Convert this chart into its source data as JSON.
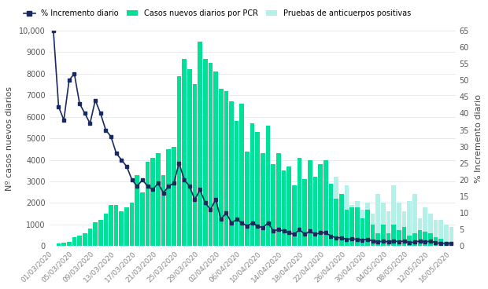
{
  "dates": [
    "01/03/2020",
    "02/03/2020",
    "03/03/2020",
    "04/03/2020",
    "05/03/2020",
    "06/03/2020",
    "07/03/2020",
    "08/03/2020",
    "09/03/2020",
    "10/03/2020",
    "11/03/2020",
    "12/03/2020",
    "13/03/2020",
    "14/03/2020",
    "15/03/2020",
    "16/03/2020",
    "17/03/2020",
    "18/03/2020",
    "19/03/2020",
    "20/03/2020",
    "21/03/2020",
    "22/03/2020",
    "23/03/2020",
    "24/03/2020",
    "25/03/2020",
    "26/03/2020",
    "27/03/2020",
    "28/03/2020",
    "29/03/2020",
    "30/03/2020",
    "31/03/2020",
    "01/04/2020",
    "02/04/2020",
    "03/04/2020",
    "04/04/2020",
    "05/04/2020",
    "06/04/2020",
    "07/04/2020",
    "08/04/2020",
    "09/04/2020",
    "10/04/2020",
    "11/04/2020",
    "12/04/2020",
    "13/04/2020",
    "14/04/2020",
    "15/04/2020",
    "16/04/2020",
    "17/04/2020",
    "18/04/2020",
    "19/04/2020",
    "20/04/2020",
    "21/04/2020",
    "22/04/2020",
    "23/04/2020",
    "24/04/2020",
    "25/04/2020",
    "26/04/2020",
    "27/04/2020",
    "28/04/2020",
    "29/04/2020",
    "30/04/2020",
    "01/05/2020",
    "02/05/2020",
    "03/05/2020",
    "04/05/2020",
    "05/05/2020",
    "06/05/2020",
    "07/05/2020",
    "08/05/2020",
    "09/05/2020",
    "10/05/2020",
    "11/05/2020",
    "12/05/2020",
    "13/05/2020",
    "14/05/2020",
    "15/05/2020",
    "16/05/2020"
  ],
  "pcr_cases": [
    0,
    100,
    150,
    200,
    400,
    500,
    600,
    800,
    1100,
    1200,
    1500,
    1900,
    1900,
    1600,
    1800,
    2000,
    3300,
    2500,
    3900,
    4100,
    4300,
    3300,
    4500,
    4600,
    7900,
    8700,
    8200,
    7500,
    9500,
    8700,
    8500,
    8100,
    7300,
    7200,
    6700,
    5800,
    6600,
    4400,
    5700,
    5300,
    4300,
    5600,
    3800,
    4300,
    3500,
    3700,
    2800,
    4100,
    3100,
    4000,
    3200,
    3800,
    4000,
    2900,
    2200,
    2400,
    1700,
    1800,
    1800,
    1300,
    1700,
    1000,
    600,
    1000,
    600,
    1000,
    750,
    900,
    500,
    600,
    750,
    650,
    600,
    400,
    350,
    200,
    180
  ],
  "antibody_cases": [
    0,
    0,
    0,
    0,
    0,
    0,
    0,
    0,
    0,
    0,
    0,
    0,
    0,
    0,
    0,
    0,
    0,
    0,
    0,
    0,
    0,
    0,
    0,
    0,
    0,
    0,
    0,
    0,
    0,
    0,
    0,
    0,
    0,
    0,
    0,
    0,
    0,
    0,
    0,
    0,
    0,
    0,
    0,
    0,
    0,
    0,
    0,
    0,
    800,
    1200,
    1400,
    2500,
    3200,
    2800,
    3200,
    2400,
    2800,
    1900,
    2100,
    1700,
    2000,
    1500,
    2400,
    2000,
    1600,
    2800,
    2000,
    1600,
    2100,
    2400,
    1300,
    1800,
    1500,
    1200,
    1200,
    1000,
    900
  ],
  "pct_increment": [
    65,
    42,
    38,
    50,
    52,
    43,
    40,
    37,
    44,
    40,
    35,
    33,
    28,
    26,
    24,
    20,
    18,
    20,
    18,
    17,
    19,
    16,
    18,
    19,
    25,
    20,
    18,
    14,
    17,
    13,
    11,
    14,
    8,
    10,
    7,
    8,
    7,
    6,
    7,
    6,
    5.5,
    7,
    4.5,
    5,
    4.5,
    4,
    3.5,
    5,
    3.5,
    4.5,
    3.5,
    4,
    4,
    3,
    2.5,
    2.5,
    2,
    2.2,
    2,
    1.8,
    2,
    1.5,
    1.2,
    1.5,
    1.2,
    1.5,
    1.3,
    1.5,
    1,
    1.2,
    1.5,
    1.2,
    1.5,
    1,
    0.8,
    0.8,
    0.7
  ],
  "xtick_labels": [
    "01/03/2020",
    "05/03/2020",
    "09/03/2020",
    "13/03/2020",
    "17/03/2020",
    "21/03/2020",
    "25/03/2020",
    "29/03/2020",
    "02/04/2020",
    "06/04/2020",
    "10/04/2020",
    "14/04/2020",
    "18/04/2020",
    "22/04/2020",
    "26/04/2020",
    "30/04/2020",
    "04/05/2020",
    "08/05/2020",
    "12/05/2020",
    "16/05/2020"
  ],
  "pcr_color": "#00e096",
  "antibody_color": "#b2f0e8",
  "line_color": "#1a2a5e",
  "ylabel_left": "Nº casos nuevos diarios",
  "ylabel_right": "% Incremento diario",
  "ylim_left": [
    0,
    10000
  ],
  "ylim_right": [
    0,
    65
  ],
  "yticks_left": [
    0,
    1000,
    2000,
    3000,
    4000,
    5000,
    6000,
    7000,
    8000,
    9000,
    10000
  ],
  "yticks_right": [
    0,
    5,
    10,
    15,
    20,
    25,
    30,
    35,
    40,
    45,
    50,
    55,
    60,
    65
  ],
  "legend_labels": [
    "% Incremento diario",
    "Casos nuevos diarios por PCR",
    "Pruebas de anticuerpos positivas"
  ],
  "background_color": "#ffffff",
  "grid_color": "#e0e0e0"
}
